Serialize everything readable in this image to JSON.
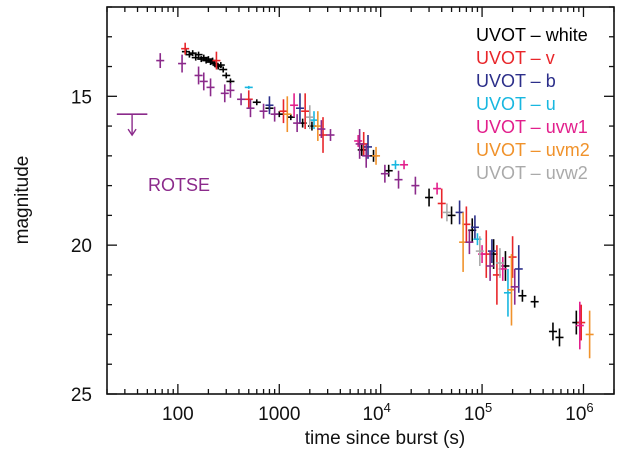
{
  "chart_data": {
    "type": "scatter",
    "xlabel": "time since burst (s)",
    "ylabel": "magnitude",
    "xscale": "log",
    "xlim": [
      20,
      2000000
    ],
    "ylim": [
      25,
      12
    ],
    "y_inverted": true,
    "x_ticks": [
      {
        "value": 100,
        "label": "100"
      },
      {
        "value": 1000,
        "label": "1000"
      },
      {
        "value": 10000,
        "label": "10",
        "sup": "4"
      },
      {
        "value": 100000,
        "label": "10",
        "sup": "5"
      },
      {
        "value": 1000000,
        "label": "10",
        "sup": "6"
      }
    ],
    "y_ticks": [
      {
        "value": 15,
        "label": "15"
      },
      {
        "value": 20,
        "label": "20"
      },
      {
        "value": 25,
        "label": "25"
      }
    ],
    "legend_placement": "top-right",
    "annotation": {
      "text": "ROTSE",
      "color": "#8b2a8b"
    },
    "series": [
      {
        "name": "UVOT – white",
        "color": "#000000",
        "points": [
          [
            120,
            13.5,
            0.1
          ],
          [
            130,
            13.6,
            0.1
          ],
          [
            140,
            13.55,
            0.1
          ],
          [
            150,
            13.7,
            0.1
          ],
          [
            160,
            13.6,
            0.1
          ],
          [
            170,
            13.75,
            0.1
          ],
          [
            180,
            13.7,
            0.1
          ],
          [
            190,
            13.8,
            0.1
          ],
          [
            200,
            13.75,
            0.1
          ],
          [
            210,
            13.85,
            0.1
          ],
          [
            220,
            13.8,
            0.1
          ],
          [
            230,
            13.9,
            0.1
          ],
          [
            240,
            13.95,
            0.1
          ],
          [
            250,
            14.0,
            0.1
          ],
          [
            265,
            13.95,
            0.1
          ],
          [
            280,
            14.1,
            0.1
          ],
          [
            300,
            14.3,
            0.1
          ],
          [
            330,
            14.5,
            0.1
          ],
          [
            600,
            15.2,
            0.1
          ],
          [
            800,
            15.4,
            0.1
          ],
          [
            1000,
            15.6,
            0.1
          ],
          [
            1300,
            15.7,
            0.1
          ],
          [
            1700,
            15.9,
            0.15
          ],
          [
            2100,
            16.0,
            0.15
          ],
          [
            6500,
            16.8,
            0.2
          ],
          [
            8500,
            17.0,
            0.2
          ],
          [
            12000,
            17.5,
            0.2
          ],
          [
            30000,
            18.4,
            0.3
          ],
          [
            50000,
            19.0,
            0.3
          ],
          [
            80000,
            19.5,
            0.4
          ],
          [
            130000,
            20.3,
            0.5
          ],
          [
            170000,
            20.7,
            0.5
          ],
          [
            250000,
            21.7,
            0.2
          ],
          [
            330000,
            21.9,
            0.2
          ],
          [
            500000,
            22.9,
            0.3
          ],
          [
            580000,
            23.1,
            0.3
          ],
          [
            850000,
            22.6,
            0.4
          ]
        ]
      },
      {
        "name": "UVOT – v",
        "color": "#e8262a",
        "points": [
          [
            118,
            13.4,
            0.2
          ],
          [
            240,
            13.8,
            0.3
          ],
          [
            500,
            15.1,
            0.3
          ],
          [
            1100,
            15.5,
            0.4
          ],
          [
            1800,
            15.5,
            0.6
          ],
          [
            2700,
            16.3,
            0.6
          ],
          [
            6800,
            16.6,
            0.4
          ],
          [
            40000,
            18.6,
            0.5
          ],
          [
            70000,
            19.3,
            0.6
          ],
          [
            110000,
            20.3,
            0.8
          ],
          [
            140000,
            21.0,
            1.0
          ],
          [
            200000,
            20.4,
            0.7
          ],
          [
            950000,
            22.6,
            0.6
          ]
        ]
      },
      {
        "name": "UVOT – b",
        "color": "#2c2f8a",
        "points": [
          [
            800,
            15.3,
            0.3
          ],
          [
            1600,
            15.4,
            0.5
          ],
          [
            7500,
            16.7,
            0.4
          ],
          [
            60000,
            18.9,
            0.4
          ],
          [
            85000,
            19.4,
            0.4
          ],
          [
            125000,
            20.2,
            0.4
          ],
          [
            230000,
            20.8,
            0.8
          ]
        ]
      },
      {
        "name": "UVOT – u",
        "color": "#18b7e0",
        "points": [
          [
            500,
            14.7,
            0.05
          ],
          [
            2200,
            15.8,
            0.3
          ],
          [
            14000,
            17.3,
            0.15
          ],
          [
            90000,
            19.8,
            0.2
          ],
          [
            180000,
            21.6,
            0.8
          ]
        ]
      },
      {
        "name": "UVOT – uvw1",
        "color": "#e21f8c",
        "points": [
          [
            1400,
            15.3,
            0.4
          ],
          [
            6000,
            16.5,
            0.2
          ],
          [
            17000,
            17.3,
            0.15
          ],
          [
            36000,
            18.1,
            0.2
          ],
          [
            100000,
            20.3,
            0.3
          ],
          [
            160000,
            20.8,
            0.4
          ],
          [
            920000,
            22.7,
            0.8
          ]
        ]
      },
      {
        "name": "UVOT – uvm2",
        "color": "#f0922b",
        "points": [
          [
            1200,
            15.6,
            0.6
          ],
          [
            2400,
            16.0,
            0.5
          ],
          [
            9000,
            17.0,
            0.3
          ],
          [
            65000,
            19.9,
            1.0
          ],
          [
            195000,
            21.5,
            1.2
          ],
          [
            1150000,
            23.0,
            0.8
          ]
        ]
      },
      {
        "name": "UVOT – uvw2",
        "color": "#aaaaaa",
        "points": [
          [
            2000,
            15.7,
            0.4
          ],
          [
            45000,
            18.9,
            0.3
          ],
          [
            95000,
            20.2,
            0.5
          ],
          [
            150000,
            20.6,
            0.5
          ]
        ]
      },
      {
        "name": "ROTSE",
        "color": "#8b2a8b",
        "points": [
          [
            67,
            13.8,
            0.25
          ],
          [
            110,
            13.9,
            0.3
          ],
          [
            160,
            14.3,
            0.3
          ],
          [
            180,
            14.5,
            0.3
          ],
          [
            210,
            14.7,
            0.3
          ],
          [
            290,
            14.9,
            0.3
          ],
          [
            330,
            14.8,
            0.25
          ],
          [
            420,
            15.1,
            0.2
          ],
          [
            520,
            15.4,
            0.3
          ],
          [
            700,
            15.5,
            0.25
          ],
          [
            900,
            15.6,
            0.25
          ],
          [
            1500,
            15.9,
            0.3
          ],
          [
            2600,
            16.1,
            0.3
          ],
          [
            3200,
            16.3,
            0.2
          ],
          [
            6200,
            16.6,
            0.5
          ],
          [
            7200,
            17.0,
            0.4
          ],
          [
            11000,
            17.6,
            0.3
          ],
          [
            15000,
            17.8,
            0.3
          ],
          [
            22000,
            18.0,
            0.3
          ],
          [
            75000,
            19.9,
            0.4
          ],
          [
            120000,
            20.7,
            0.5
          ],
          [
            210000,
            21.4,
            0.6
          ]
        ]
      }
    ],
    "upper_limit": {
      "name": "ROTSE",
      "x_start": 25,
      "x_end": 50,
      "y": 15.6,
      "color": "#8b2a8b"
    }
  }
}
